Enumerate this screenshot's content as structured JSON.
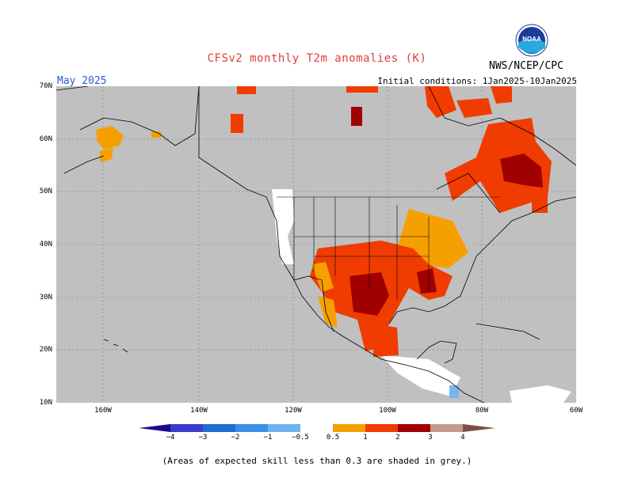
{
  "header": {
    "title": "CFSv2 monthly T2m anomalies (K)",
    "agency": "NWS/NCEP/CPC",
    "month": "May 2025",
    "initial_conditions": "Initial conditions: 1Jan2025-10Jan2025"
  },
  "logo": {
    "text": "NOAA"
  },
  "map": {
    "lat_labels": [
      "70N",
      "60N",
      "50N",
      "40N",
      "30N",
      "20N",
      "10N"
    ],
    "lon_labels": [
      "160W",
      "140W",
      "120W",
      "100W",
      "80W",
      "60W"
    ],
    "colors": {
      "ocean_land_grey": "#c0c0c0",
      "neutral_white": "#ffffff",
      "orange_0_5_1": "#f5a000",
      "redorange_1_2": "#f03c00",
      "darkred_2_3": "#a00000",
      "blue_neg_0_5_1": "#7bb4ec"
    }
  },
  "colorbar": {
    "labels": [
      "−4",
      "−3",
      "−2",
      "−1",
      "−0.5",
      "0.5",
      "1",
      "2",
      "3",
      "4"
    ],
    "colors": [
      "#1c0a8a",
      "#3a3ccc",
      "#1f6dd0",
      "#3b8fe6",
      "#6fb3f0",
      "#ffffff",
      "#f5a000",
      "#f03c00",
      "#a00000",
      "#c49a8c",
      "#7a4f45"
    ]
  },
  "footnote": "(Areas of expected skill less than 0.3 are shaded in grey.)"
}
